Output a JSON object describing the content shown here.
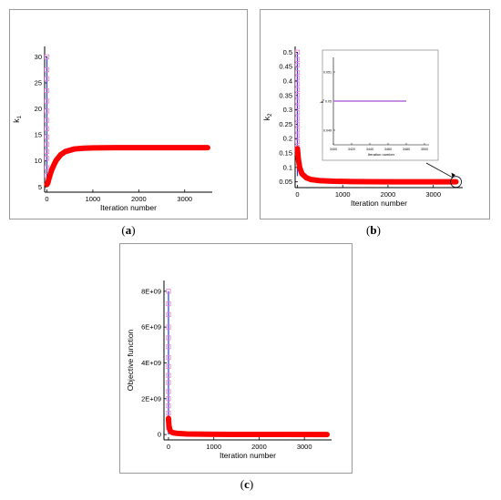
{
  "chart_data": [
    {
      "type": "line",
      "id": "a",
      "caption": "a",
      "xlabel": "Iteration number",
      "ylabel": "k1",
      "xlim": [
        -50,
        3600
      ],
      "ylim": [
        4,
        32
      ],
      "xticks": [
        0,
        1000,
        2000,
        3000
      ],
      "yticks": [
        5,
        10,
        15,
        20,
        25,
        30
      ],
      "ylabel_main": "k",
      "ylabel_sub": "1",
      "markers": {
        "x": [
          0,
          0,
          0,
          0,
          0,
          0,
          0,
          0,
          0,
          0,
          0,
          0,
          0,
          0
        ],
        "y": [
          30,
          27.5,
          25.8,
          23.5,
          21.5,
          19.6,
          17.8,
          16.2,
          14.6,
          13.2,
          11.8,
          10.5,
          8.7,
          7.2
        ]
      },
      "spike_y": [
        5.5,
        30
      ],
      "series": [
        {
          "x": [
            0,
            20,
            50,
            100,
            150,
            200,
            300,
            400,
            600,
            800,
            1000,
            1500,
            2000,
            2500,
            3000,
            3500
          ],
          "y": [
            5.5,
            5.8,
            6.8,
            8.2,
            9.2,
            10.1,
            11.2,
            11.8,
            12.3,
            12.45,
            12.5,
            12.55,
            12.55,
            12.55,
            12.55,
            12.55
          ]
        }
      ]
    },
    {
      "type": "line",
      "id": "b",
      "caption": "b",
      "xlabel": "Iteration number",
      "ylabel": "k2",
      "xlim": [
        -50,
        3650
      ],
      "ylim": [
        0.03,
        0.52
      ],
      "xticks": [
        0,
        1000,
        2000,
        3000
      ],
      "yticks": [
        0.05,
        0.1,
        0.15,
        0.2,
        0.25,
        0.3,
        0.35,
        0.4,
        0.45,
        0.5
      ],
      "ytick_labels": [
        "0.05",
        "0.1",
        "0.15",
        "0.2",
        "0.25",
        "0.3",
        "0.35",
        "0.4",
        "0.45",
        "0.5"
      ],
      "ylabel_main": "k",
      "ylabel_sub": "2",
      "markers": {
        "x": [
          0,
          0,
          0,
          0,
          0,
          0,
          0,
          0,
          0,
          0,
          0,
          0,
          0,
          0,
          0,
          0,
          0,
          0
        ],
        "y": [
          0.5,
          0.475,
          0.455,
          0.43,
          0.41,
          0.39,
          0.37,
          0.35,
          0.33,
          0.31,
          0.29,
          0.27,
          0.25,
          0.23,
          0.21,
          0.19,
          0.17,
          0.15
        ]
      },
      "spike_y": [
        0.07,
        0.5
      ],
      "series": [
        {
          "x": [
            0,
            20,
            50,
            100,
            200,
            300,
            500,
            800,
            1200,
            2000,
            2500,
            3000,
            3500
          ],
          "y": [
            0.165,
            0.13,
            0.1,
            0.078,
            0.064,
            0.058,
            0.054,
            0.052,
            0.051,
            0.05,
            0.05,
            0.05,
            0.05
          ]
        }
      ],
      "inset": {
        "xlabel": "Iteration number",
        "ylabel": "k2",
        "xticks": [
          3400,
          3420,
          3440,
          3460,
          3480,
          3500
        ],
        "yticks": [
          0.049,
          0.05,
          0.051
        ],
        "xlim": [
          3400,
          3505
        ],
        "ylim": [
          0.0485,
          0.0515
        ],
        "line": {
          "x": [
            3400,
            3480
          ],
          "y": [
            0.05,
            0.05
          ]
        }
      }
    },
    {
      "type": "line",
      "id": "c",
      "caption": "c",
      "xlabel": "Iteration number",
      "ylabel": "Objective function",
      "xlim": [
        -100,
        3600
      ],
      "ylim": [
        -300000000,
        8600000000
      ],
      "xticks": [
        0,
        1000,
        2000,
        3000
      ],
      "yticks": [
        0,
        2000000000,
        4000000000,
        6000000000,
        8000000000
      ],
      "ytick_labels": [
        "0",
        "2E+09",
        "4E+09",
        "6E+09",
        "8E+09"
      ],
      "markers": {
        "x": [
          0,
          0,
          0,
          0,
          0,
          0,
          0,
          0,
          0,
          0,
          0,
          0,
          0,
          0,
          0,
          0
        ],
        "y": [
          8000000000,
          7300000000,
          6700000000,
          6000000000,
          5400000000,
          4900000000,
          4300000000,
          3800000000,
          3300000000,
          2900000000,
          2400000000,
          2000000000,
          1600000000,
          1200000000,
          800000000,
          400000000
        ]
      },
      "spike_y": [
        0,
        8000000000
      ],
      "series": [
        {
          "x": [
            0,
            10,
            30,
            60,
            100,
            200,
            400,
            800,
            1500,
            2500,
            3500
          ],
          "y": [
            900000000,
            500000000,
            250000000,
            150000000,
            100000000,
            60000000,
            30000000,
            15000000,
            5000000,
            2000000,
            1000000
          ]
        }
      ]
    }
  ]
}
